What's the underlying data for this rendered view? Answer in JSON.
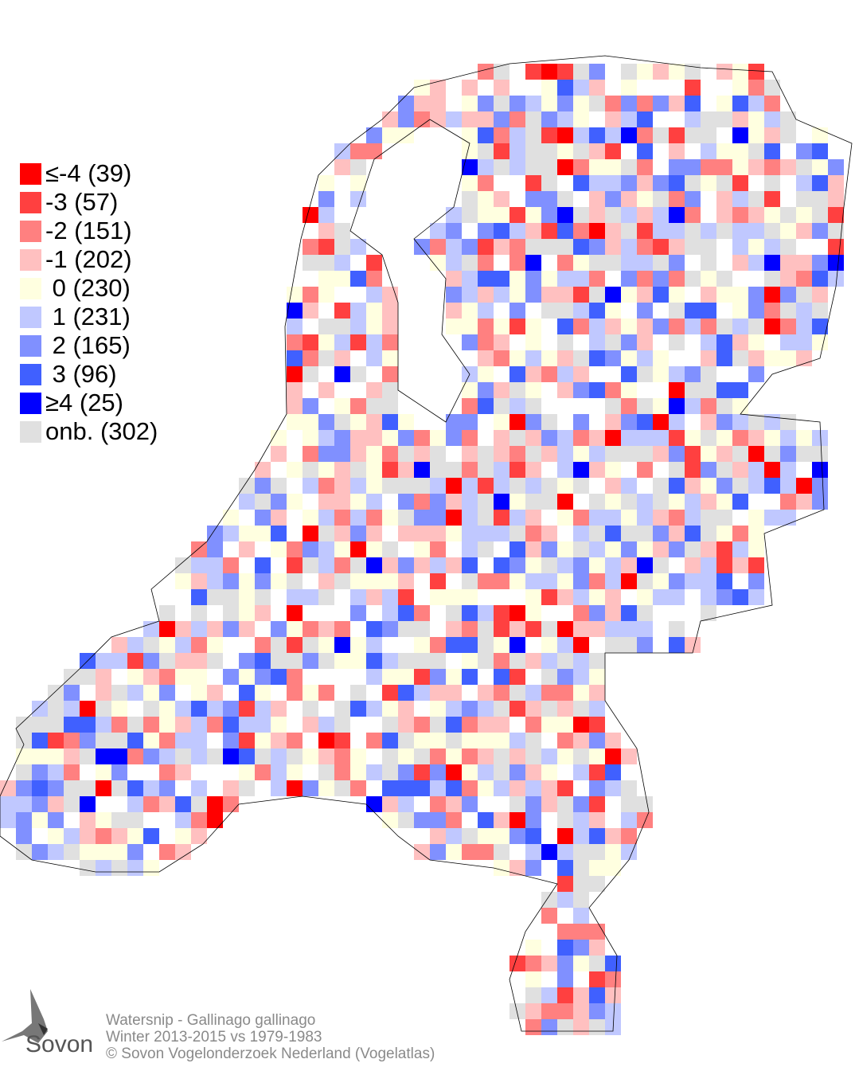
{
  "legend": [
    {
      "label": "≤-4 (39)",
      "value": "≤-4",
      "count": 39,
      "color": "#FF0000"
    },
    {
      "label": "-3 (57)",
      "value": "-3",
      "count": 57,
      "color": "#FF4040"
    },
    {
      "label": "-2 (151)",
      "value": "-2",
      "count": 151,
      "color": "#FF8080"
    },
    {
      "label": "-1 (202)",
      "value": "-1",
      "count": 202,
      "color": "#FFC0C0"
    },
    {
      "label": " 0 (230)",
      "value": "0",
      "count": 230,
      "color": "#FFFFE0"
    },
    {
      "label": " 1 (231)",
      "value": "1",
      "count": 231,
      "color": "#C0C8FF"
    },
    {
      "label": " 2 (165)",
      "value": "2",
      "count": 165,
      "color": "#8090FF"
    },
    {
      "label": " 3 (96)",
      "value": "3",
      "count": 96,
      "color": "#4060FF"
    },
    {
      "label": "≥4 (25)",
      "value": "≥4",
      "count": 25,
      "color": "#0000FF"
    },
    {
      "label": "onb. (302)",
      "value": "onb.",
      "count": 302,
      "color": "#E0E0E0"
    }
  ],
  "footer": {
    "species": "Watersnip - Gallinago gallinago",
    "period": "Winter 2013-2015 vs 1979-1983",
    "copyright": "© Sovon Vogelonderzoek Nederland (Vogelatlas)"
  },
  "logo": {
    "text": "Sovon"
  }
}
